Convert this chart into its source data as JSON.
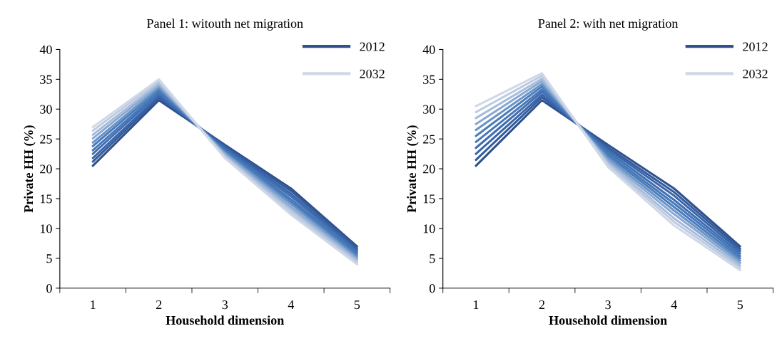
{
  "chart_data": [
    {
      "type": "line",
      "title": "Panel 1: witouth net migration",
      "xlabel": "Household dimension",
      "ylabel": "Private HH (%)",
      "categories": [
        "1",
        "2",
        "3",
        "4",
        "5"
      ],
      "ylim": [
        0,
        40
      ],
      "yticks": [
        0,
        5,
        10,
        15,
        20,
        25,
        30,
        35,
        40
      ],
      "grid": false,
      "legend": "top right",
      "marker": "none",
      "line_style": "solid",
      "series": [
        {
          "name": "2012",
          "color": "#2f528f",
          "values": [
            20.5,
            31.5,
            24,
            16.7,
            7
          ]
        },
        {
          "color": "#345b9c",
          "values": [
            21.2,
            31.9,
            23.8,
            16.3,
            6.7
          ]
        },
        {
          "color": "#3a65a8",
          "values": [
            21.8,
            32.2,
            23.6,
            15.8,
            6.4
          ]
        },
        {
          "color": "#4070b3",
          "values": [
            22.5,
            32.6,
            23.3,
            15.4,
            6.1
          ]
        },
        {
          "color": "#4677b8",
          "values": [
            23.1,
            32.9,
            23.1,
            14.9,
            5.8
          ]
        },
        {
          "color": "#4a7ebb",
          "values": [
            23.8,
            33.3,
            22.9,
            14.5,
            5.5
          ]
        },
        {
          "color": "#6a93c6",
          "values": [
            24.4,
            33.6,
            22.7,
            14.1,
            5.2
          ]
        },
        {
          "color": "#8aa8d1",
          "values": [
            25.1,
            34.0,
            22.5,
            13.6,
            4.9
          ]
        },
        {
          "color": "#a6bcdb",
          "values": [
            25.7,
            34.3,
            22.2,
            13.2,
            4.6
          ]
        },
        {
          "color": "#bccbe2",
          "values": [
            26.4,
            34.7,
            22.0,
            12.7,
            4.3
          ]
        },
        {
          "name": "2032",
          "color": "#d0d8e8",
          "values": [
            27,
            35,
            21.8,
            12.3,
            4
          ]
        }
      ]
    },
    {
      "type": "line",
      "title": "Panel 2: with net migration",
      "xlabel": "Household dimension",
      "ylabel": "Private HH (%)",
      "categories": [
        "1",
        "2",
        "3",
        "4",
        "5"
      ],
      "ylim": [
        0,
        40
      ],
      "yticks": [
        0,
        5,
        10,
        15,
        20,
        25,
        30,
        35,
        40
      ],
      "grid": false,
      "legend": "top right",
      "marker": "none",
      "line_style": "solid",
      "series": [
        {
          "name": "2012",
          "color": "#2f528f",
          "values": [
            20.5,
            31.5,
            24,
            16.7,
            7
          ]
        },
        {
          "color": "#345b9c",
          "values": [
            21.5,
            32.0,
            23.6,
            16.1,
            6.6
          ]
        },
        {
          "color": "#3a65a8",
          "values": [
            22.5,
            32.4,
            23.3,
            15.5,
            6.2
          ]
        },
        {
          "color": "#4070b3",
          "values": [
            23.5,
            32.9,
            22.9,
            14.8,
            5.8
          ]
        },
        {
          "color": "#4677b8",
          "values": [
            24.5,
            33.3,
            22.5,
            14.2,
            5.4
          ]
        },
        {
          "color": "#4a7ebb",
          "values": [
            25.5,
            33.8,
            22.2,
            13.6,
            5.0
          ]
        },
        {
          "color": "#6a93c6",
          "values": [
            26.5,
            34.2,
            21.8,
            13.0,
            4.6
          ]
        },
        {
          "color": "#8aa8d1",
          "values": [
            27.5,
            34.7,
            21.4,
            12.4,
            4.2
          ]
        },
        {
          "color": "#a6bcdb",
          "values": [
            28.5,
            35.1,
            21.0,
            11.7,
            3.8
          ]
        },
        {
          "color": "#bccbe2",
          "values": [
            29.5,
            35.6,
            20.7,
            11.1,
            3.4
          ]
        },
        {
          "name": "2032",
          "color": "#d0d8e8",
          "values": [
            30.5,
            36,
            20.3,
            10.5,
            3
          ]
        }
      ]
    }
  ]
}
